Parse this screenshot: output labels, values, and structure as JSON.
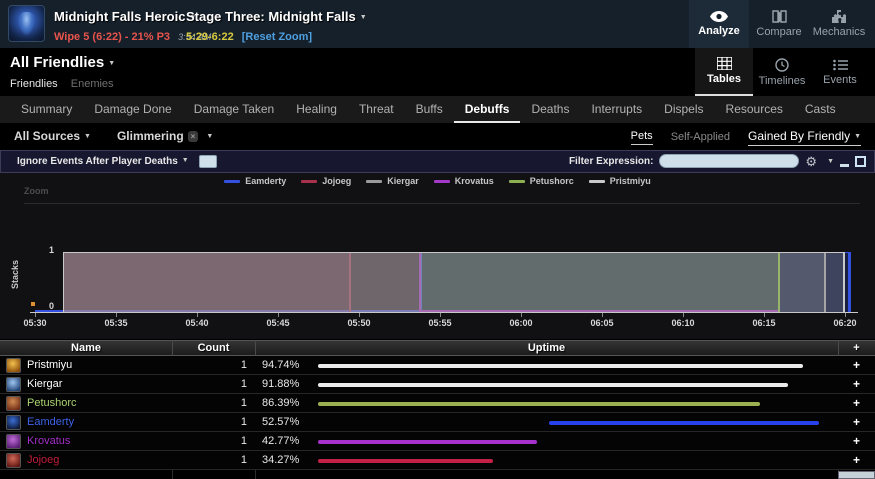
{
  "header": {
    "boss": {
      "name": "Midnight Falls Heroic"
    },
    "pull": {
      "label": "Wipe 5 (6:22) - 21% P3",
      "time": "3:54 AM"
    },
    "stage": {
      "name": "Stage Three: Midnight Falls"
    },
    "zoom": {
      "range": "5:29-6:22",
      "reset": "[Reset Zoom]"
    },
    "nav": [
      {
        "label": "Analyze",
        "icon": "eye-icon",
        "active": true
      },
      {
        "label": "Compare",
        "icon": "compare-icon",
        "active": false
      },
      {
        "label": "Mechanics",
        "icon": "puzzle-icon",
        "active": false
      }
    ]
  },
  "subheader": {
    "selector": "All Friendlies",
    "friendlies": "Friendlies",
    "enemies": "Enemies",
    "views": [
      {
        "label": "Tables",
        "icon": "grid-icon",
        "active": true
      },
      {
        "label": "Timelines",
        "icon": "clock-icon",
        "active": false
      },
      {
        "label": "Events",
        "icon": "list-icon",
        "active": false
      }
    ]
  },
  "tabs": {
    "items": [
      "Summary",
      "Damage Done",
      "Damage Taken",
      "Healing",
      "Threat",
      "Buffs",
      "Debuffs",
      "Deaths",
      "Interrupts",
      "Dispels",
      "Resources",
      "Casts"
    ],
    "active": "Debuffs"
  },
  "filterbar": {
    "sources": "All Sources",
    "chip": "Glimmering",
    "chip_close": "×",
    "pets": "Pets",
    "self_applied": "Self-Applied",
    "gained_by": "Gained By Friendly"
  },
  "toolbar": {
    "ignore_label": "Ignore Events After Player Deaths",
    "filter_label": "Filter Expression:",
    "filter_value": ""
  },
  "chart_data": {
    "type": "area",
    "title": "",
    "ylabel": "Stacks",
    "ylim": [
      0,
      1
    ],
    "yticks": [
      1,
      0
    ],
    "zoom_label": "Zoom",
    "x_window": {
      "start_sec": 330,
      "end_sec": 382,
      "start_label": "05:30",
      "end_label": "06:22"
    },
    "x_ticks": [
      {
        "sec": 330,
        "label": "05:30"
      },
      {
        "sec": 335,
        "label": "05:35"
      },
      {
        "sec": 340,
        "label": "05:40"
      },
      {
        "sec": 345,
        "label": "05:45"
      },
      {
        "sec": 350,
        "label": "05:50"
      },
      {
        "sec": 355,
        "label": "05:55"
      },
      {
        "sec": 360,
        "label": "06:00"
      },
      {
        "sec": 365,
        "label": "06:05"
      },
      {
        "sec": 370,
        "label": "06:10"
      },
      {
        "sec": 375,
        "label": "06:15"
      },
      {
        "sec": 380,
        "label": "06:20"
      }
    ],
    "legend_position": "top",
    "series": [
      {
        "name": "Eamderty",
        "color": "#3350e0",
        "value": 1,
        "start": "05:54",
        "end": "06:20",
        "start_sec": 353.8,
        "end_sec": 380.4,
        "zero_line_before": true,
        "zero_line_after": false
      },
      {
        "name": "Jojoeg",
        "color": "#a8324c",
        "value": 1,
        "start": "05:32",
        "end": "05:50",
        "start_sec": 331.7,
        "end_sec": 349.5,
        "zero_line_before": false,
        "zero_line_after": false
      },
      {
        "name": "Kiergar",
        "color": "#9a9a9a",
        "value": 1,
        "start": "05:32",
        "end": "06:19",
        "start_sec": 331.7,
        "end_sec": 378.8,
        "zero_line_before": false,
        "zero_line_after": false
      },
      {
        "name": "Krovatus",
        "color": "#a338c9",
        "value": 1,
        "start": "05:32",
        "end": "05:54",
        "start_sec": 331.7,
        "end_sec": 353.8,
        "zero_line_before": false,
        "zero_line_after": true
      },
      {
        "name": "Petushorc",
        "color": "#8caf52",
        "value": 1,
        "start": "05:32",
        "end": "06:16",
        "start_sec": 331.7,
        "end_sec": 376.0,
        "zero_line_before": false,
        "zero_line_after": false
      },
      {
        "name": "Pristmiyu",
        "color": "#c9c9c9",
        "value": 1,
        "start": "05:32",
        "end": "06:20",
        "start_sec": 331.7,
        "end_sec": 380.0,
        "zero_line_before": false,
        "zero_line_after": false
      }
    ]
  },
  "table": {
    "headers": {
      "name": "Name",
      "count": "Count",
      "uptime": "Uptime",
      "plus": "+"
    },
    "rows": [
      {
        "name": "Pristmiyu",
        "class_color": "#ffffff",
        "count": "1",
        "uptime": "94.74%",
        "bar_color": "#ebebeb",
        "bar_start_pct": 0,
        "bar_width_pct": 94.74,
        "icon_colors": [
          "#f2c14e",
          "#8a4a08"
        ]
      },
      {
        "name": "Kiergar",
        "class_color": "#ffffff",
        "count": "1",
        "uptime": "91.88%",
        "bar_color": "#ebebeb",
        "bar_start_pct": 0,
        "bar_width_pct": 91.88,
        "icon_colors": [
          "#9fc6f0",
          "#1c3f73"
        ]
      },
      {
        "name": "Petushorc",
        "class_color": "#aad372",
        "count": "1",
        "uptime": "86.39%",
        "bar_color": "#9cb052",
        "bar_start_pct": 0,
        "bar_width_pct": 86.39,
        "icon_colors": [
          "#d08a52",
          "#6e2a14"
        ]
      },
      {
        "name": "Eamderty",
        "class_color": "#3e63e8",
        "count": "1",
        "uptime": "52.57%",
        "bar_color": "#2742ec",
        "bar_start_pct": 45.2,
        "bar_width_pct": 52.57,
        "icon_colors": [
          "#3a6fd8",
          "#0c1530"
        ]
      },
      {
        "name": "Krovatus",
        "class_color": "#a330c9",
        "count": "1",
        "uptime": "42.77%",
        "bar_color": "#a830cc",
        "bar_start_pct": 0,
        "bar_width_pct": 42.77,
        "icon_colors": [
          "#c06ad8",
          "#541a6e"
        ]
      },
      {
        "name": "Jojoeg",
        "class_color": "#c41e3a",
        "count": "1",
        "uptime": "34.27%",
        "bar_color": "#c32148",
        "bar_start_pct": 0,
        "bar_width_pct": 34.27,
        "icon_colors": [
          "#d06858",
          "#5e1410"
        ]
      }
    ]
  },
  "colors": {
    "topbar_bg": "#15202b",
    "toolbar_bg": "#17172f",
    "wipe_red": "#e8544c",
    "zoom_yellow": "#d8ca3e",
    "reset_blue": "#4e9fe0"
  }
}
